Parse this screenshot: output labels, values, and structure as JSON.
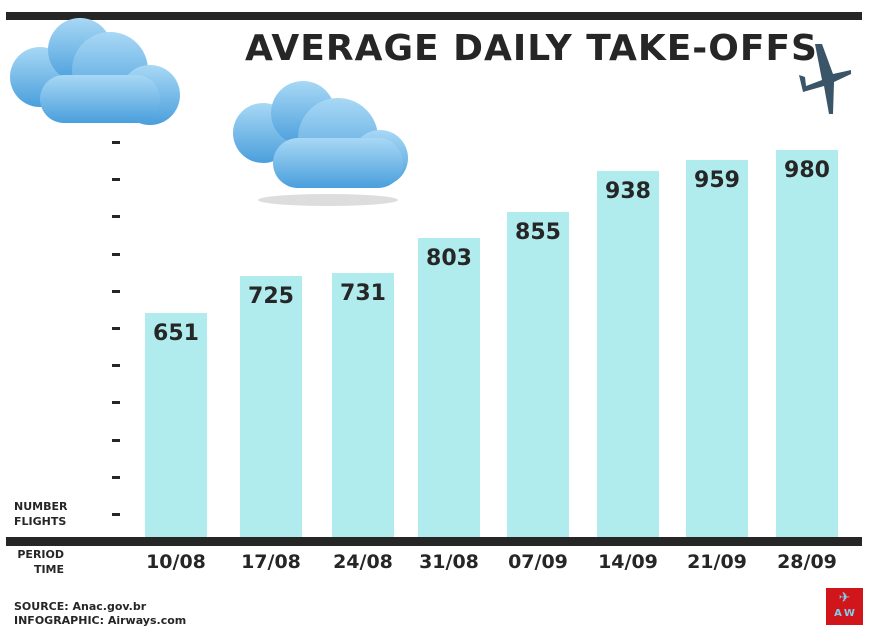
{
  "chart_data": {
    "type": "bar",
    "title": "AVERAGE DAILY TAKE-OFFS",
    "ylabel": "NUMBER FLIGHTS",
    "xlabel": "PERIOD TIME",
    "ylabel_lines": [
      "NUMBER",
      "FLIGHTS"
    ],
    "xlabel_lines": [
      "PERIOD",
      "TIME"
    ],
    "categories": [
      "10/08",
      "17/08",
      "24/08",
      "31/08",
      "07/09",
      "14/09",
      "21/09",
      "28/09"
    ],
    "values": [
      651,
      725,
      731,
      803,
      855,
      938,
      959,
      980
    ],
    "bar_color": "#b0ecee",
    "grid": false
  },
  "footer": {
    "source": "SOURCE: Anac.gov.br",
    "infographic": "INFOGRAPHIC: Airways.com"
  },
  "logo": {
    "text": "A W",
    "color": "#d0161b"
  },
  "icons": [
    "cloud-icon",
    "cloud-icon",
    "airplane-icon"
  ]
}
